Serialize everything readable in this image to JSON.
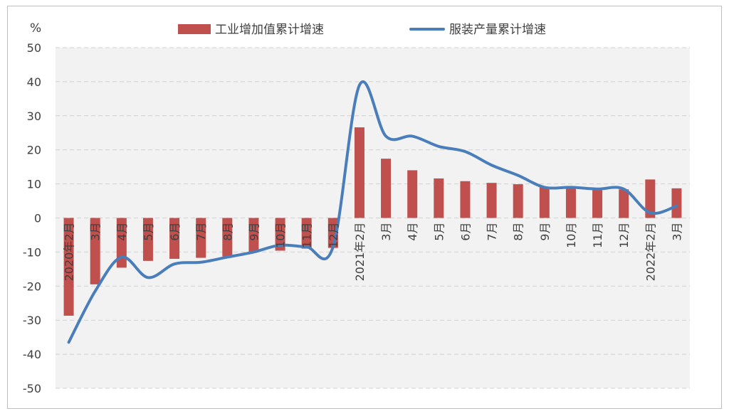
{
  "chart_data": {
    "type": "bar+line",
    "unit_label": "%",
    "ylim": [
      -50,
      50
    ],
    "yticks": [
      50,
      40,
      30,
      20,
      10,
      0,
      -10,
      -20,
      -30,
      -40,
      -50
    ],
    "grid": true,
    "legend_position": "top",
    "categories": [
      "2020年2月",
      "3月",
      "4月",
      "5月",
      "6月",
      "7月",
      "8月",
      "9月",
      "10月",
      "11月",
      "12月",
      "2021年2月",
      "3月",
      "4月",
      "5月",
      "6月",
      "7月",
      "8月",
      "9月",
      "10月",
      "11月",
      "12月",
      "2022年2月",
      "3月"
    ],
    "series": [
      {
        "name": "工业增加值累计增速",
        "type": "bar",
        "color": "#C0504D",
        "values": [
          -28.7,
          -19.5,
          -14.6,
          -12.6,
          -12.0,
          -11.7,
          -11.3,
          -10.0,
          -9.6,
          -9.0,
          -8.8,
          26.6,
          17.4,
          14.0,
          11.6,
          10.8,
          10.3,
          9.9,
          9.1,
          8.8,
          8.4,
          8.4,
          11.3,
          8.7
        ]
      },
      {
        "name": "服装产量累计增速",
        "type": "line",
        "color": "#4A7EBB",
        "values": [
          -36.5,
          -21.5,
          -11.5,
          -17.5,
          -13.5,
          -13.0,
          -11.5,
          -10.0,
          -8.0,
          -8.5,
          -8.5,
          39.0,
          24.0,
          24.0,
          21.0,
          19.5,
          15.5,
          12.5,
          9.0,
          9.0,
          8.5,
          8.5,
          1.5,
          3.5
        ]
      }
    ]
  }
}
